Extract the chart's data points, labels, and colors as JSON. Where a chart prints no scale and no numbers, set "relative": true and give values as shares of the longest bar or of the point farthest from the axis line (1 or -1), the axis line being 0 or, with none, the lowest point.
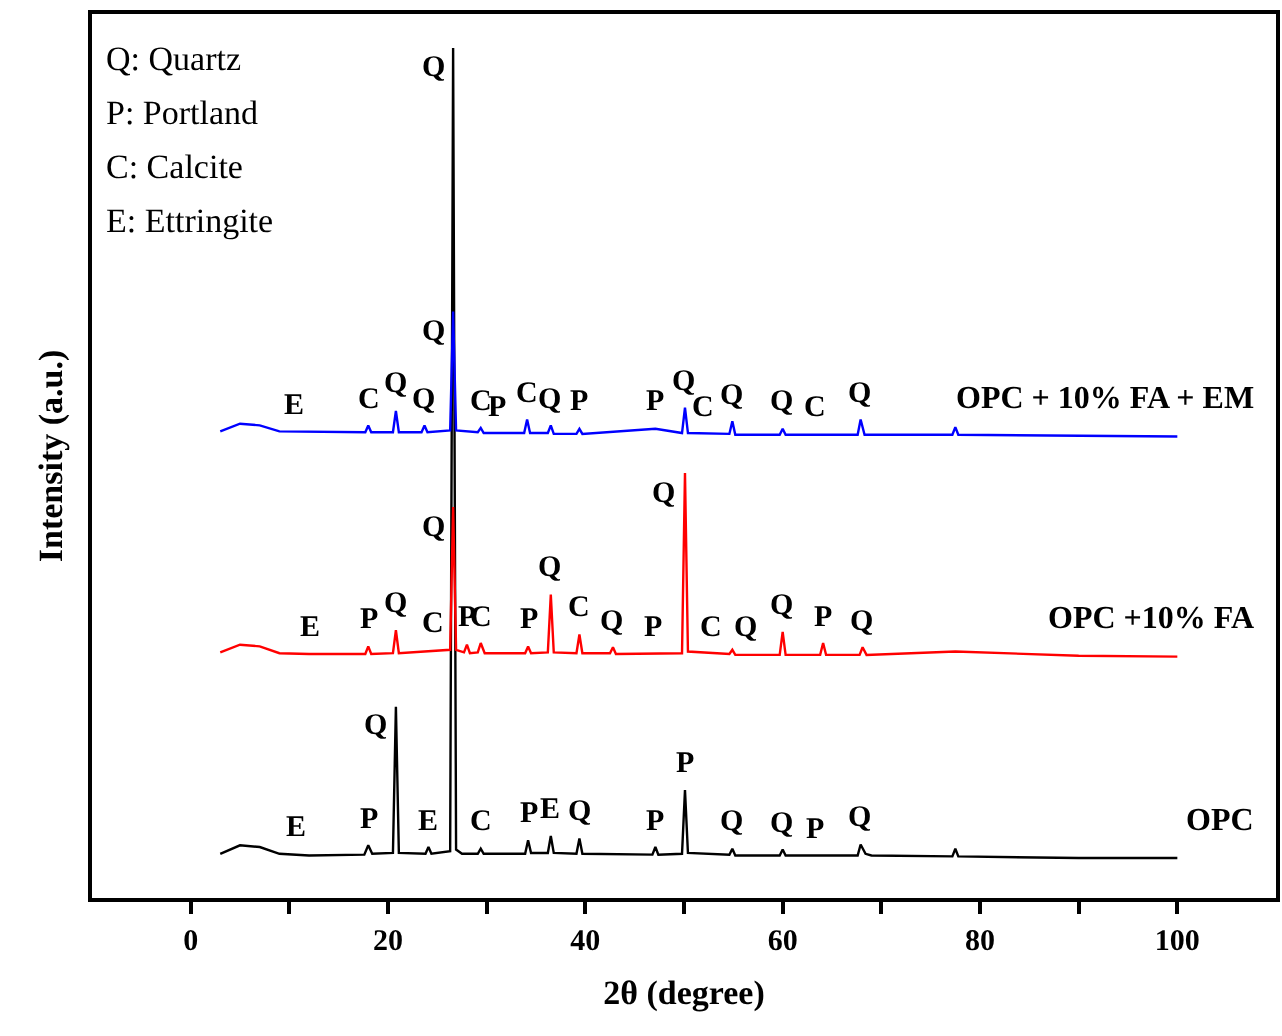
{
  "chart_data": {
    "type": "line",
    "relative": true,
    "xlabel": "2θ (degree)",
    "ylabel": "Intensity (a.u.)",
    "xlim": [
      -10,
      110
    ],
    "ylim": [
      0,
      1.04
    ],
    "xticks": [
      0,
      {
        "value": 10,
        "label": null
      },
      20,
      {
        "value": 30,
        "label": null
      },
      40,
      {
        "value": 50,
        "label": null
      },
      60,
      {
        "value": 70,
        "label": null
      },
      80,
      {
        "value": 90,
        "label": null
      },
      100
    ],
    "tick_labels": "x",
    "grid": false,
    "legend": false,
    "marker": "none",
    "line_style": "solid",
    "series": [
      {
        "name": "OPC + 10% FA + EM",
        "color": "#0000ff",
        "x": [
          3,
          5,
          7,
          9,
          17.7,
          18,
          18.3,
          20.5,
          20.8,
          21.1,
          23.4,
          23.7,
          24,
          26.3,
          26.6,
          26.9,
          29.1,
          29.4,
          29.7,
          33.8,
          34.1,
          34.4,
          36.2,
          36.5,
          36.8,
          39.1,
          39.4,
          39.7,
          47.1,
          49.8,
          50.1,
          50.4,
          54.6,
          54.9,
          55.2,
          59.7,
          60,
          60.3,
          67.6,
          67.9,
          68.3,
          77.2,
          77.5,
          77.8,
          100
        ],
        "values": [
          0.549,
          0.558,
          0.556,
          0.549,
          0.548,
          0.556,
          0.548,
          0.548,
          0.573,
          0.548,
          0.548,
          0.556,
          0.548,
          0.55,
          0.69,
          0.55,
          0.548,
          0.553,
          0.547,
          0.547,
          0.563,
          0.547,
          0.547,
          0.556,
          0.546,
          0.546,
          0.552,
          0.546,
          0.552,
          0.547,
          0.577,
          0.547,
          0.546,
          0.561,
          0.545,
          0.545,
          0.552,
          0.545,
          0.545,
          0.563,
          0.545,
          0.545,
          0.554,
          0.545,
          0.543
        ]
      },
      {
        "name": "OPC +10% FA",
        "color": "#ff0000",
        "x": [
          3,
          5,
          7,
          9,
          12,
          17.7,
          18,
          18.3,
          20.5,
          20.8,
          21.1,
          26.3,
          26.6,
          26.9,
          27.7,
          28,
          28.3,
          29.1,
          29.4,
          29.8,
          33.9,
          34.2,
          34.5,
          36.2,
          36.5,
          36.8,
          39.1,
          39.4,
          39.7,
          42.5,
          42.8,
          43.1,
          49.8,
          50.1,
          50.4,
          54.6,
          54.9,
          55.2,
          59.7,
          60,
          60.3,
          63.8,
          64.1,
          64.4,
          67.8,
          68.1,
          68.5,
          77.5,
          90,
          100
        ],
        "values": [
          0.289,
          0.298,
          0.296,
          0.288,
          0.287,
          0.287,
          0.296,
          0.287,
          0.288,
          0.315,
          0.288,
          0.292,
          0.46,
          0.292,
          0.289,
          0.298,
          0.288,
          0.289,
          0.3,
          0.288,
          0.288,
          0.296,
          0.288,
          0.289,
          0.357,
          0.289,
          0.288,
          0.31,
          0.288,
          0.288,
          0.295,
          0.287,
          0.288,
          0.5,
          0.29,
          0.287,
          0.292,
          0.286,
          0.286,
          0.313,
          0.286,
          0.286,
          0.3,
          0.286,
          0.286,
          0.295,
          0.286,
          0.29,
          0.285,
          0.284
        ]
      },
      {
        "name": "OPC",
        "color": "#000000",
        "x": [
          3,
          5,
          7,
          9,
          12,
          17.6,
          18,
          18.4,
          20.5,
          20.8,
          21.1,
          23.8,
          24.1,
          24.4,
          26.3,
          26.6,
          26.9,
          27.5,
          29.1,
          29.4,
          29.7,
          33.9,
          34.2,
          34.5,
          36.2,
          36.5,
          36.8,
          39.1,
          39.4,
          39.7,
          46.8,
          47.1,
          47.4,
          49.8,
          50.1,
          50.4,
          54.6,
          54.9,
          55.2,
          59.7,
          60,
          60.3,
          67.6,
          67.9,
          68.4,
          69,
          77.2,
          77.5,
          77.8,
          90,
          100
        ],
        "values": [
          0.052,
          0.062,
          0.06,
          0.052,
          0.05,
          0.051,
          0.062,
          0.052,
          0.053,
          0.225,
          0.053,
          0.052,
          0.06,
          0.052,
          0.055,
          1.0,
          0.057,
          0.052,
          0.052,
          0.058,
          0.052,
          0.052,
          0.068,
          0.053,
          0.053,
          0.073,
          0.053,
          0.052,
          0.07,
          0.052,
          0.051,
          0.06,
          0.051,
          0.052,
          0.127,
          0.053,
          0.051,
          0.058,
          0.05,
          0.05,
          0.057,
          0.05,
          0.05,
          0.063,
          0.052,
          0.05,
          0.049,
          0.058,
          0.049,
          0.047,
          0.047
        ]
      }
    ],
    "annotations": [
      "Q: Quartz",
      "P: Portland",
      "C: Calcite",
      "E: Ettringite",
      {
        "text": "E",
        "x": 10.4,
        "y": 0.549
      },
      {
        "text": "C",
        "x": 18,
        "y": 0.556
      },
      {
        "text": "Q",
        "x": 20.8,
        "y": 0.573
      },
      {
        "text": "Q",
        "x": 23.7,
        "y": 0.556
      },
      {
        "text": "Q",
        "x": 26.6,
        "y": 0.69
      },
      {
        "text": "C",
        "x": 29.4,
        "y": 0.553
      },
      {
        "text": "P",
        "x": 31,
        "y": 0.547
      },
      {
        "text": "C",
        "x": 34.1,
        "y": 0.563
      },
      {
        "text": "Q",
        "x": 36.5,
        "y": 0.556
      },
      {
        "text": "P",
        "x": 39.4,
        "y": 0.552
      },
      {
        "text": "P",
        "x": 47.1,
        "y": 0.552
      },
      {
        "text": "Q",
        "x": 50.1,
        "y": 0.577
      },
      {
        "text": "C",
        "x": 52,
        "y": 0.547
      },
      {
        "text": "Q",
        "x": 54.9,
        "y": 0.561
      },
      {
        "text": "Q",
        "x": 60,
        "y": 0.552
      },
      {
        "text": "C",
        "x": 63.3,
        "y": 0.545
      },
      {
        "text": "Q",
        "x": 67.9,
        "y": 0.563
      },
      {
        "text": "Q",
        "x": 26.6,
        "y": 0.46
      },
      {
        "text": "E",
        "x": 12,
        "y": 0.287
      },
      {
        "text": "P",
        "x": 18,
        "y": 0.296
      },
      {
        "text": "Q",
        "x": 20.8,
        "y": 0.315
      },
      {
        "text": "C",
        "x": 24.5,
        "y": 0.291
      },
      {
        "text": "P",
        "x": 28,
        "y": 0.298
      },
      {
        "text": "C",
        "x": 29.4,
        "y": 0.3
      },
      {
        "text": "P",
        "x": 34.2,
        "y": 0.296
      },
      {
        "text": "Q",
        "x": 36.5,
        "y": 0.357
      },
      {
        "text": "C",
        "x": 39.4,
        "y": 0.31
      },
      {
        "text": "Q",
        "x": 42.8,
        "y": 0.295
      },
      {
        "text": "P",
        "x": 46.8,
        "y": 0.288
      },
      {
        "text": "Q",
        "x": 50.1,
        "y": 0.5
      },
      {
        "text": "C",
        "x": 52.7,
        "y": 0.288
      },
      {
        "text": "Q",
        "x": 56.3,
        "y": 0.286
      },
      {
        "text": "Q",
        "x": 60,
        "y": 0.313
      },
      {
        "text": "P",
        "x": 64.1,
        "y": 0.3
      },
      {
        "text": "Q",
        "x": 68.1,
        "y": 0.295
      },
      {
        "text": "Q",
        "x": 26.6,
        "y": 1.0
      },
      {
        "text": "E",
        "x": 10.6,
        "y": 0.051
      },
      {
        "text": "P",
        "x": 18,
        "y": 0.062
      },
      {
        "text": "Q",
        "x": 20.8,
        "y": 0.225
      },
      {
        "text": "E",
        "x": 24.1,
        "y": 0.06
      },
      {
        "text": "C",
        "x": 29.4,
        "y": 0.058
      },
      {
        "text": "P",
        "x": 34.2,
        "y": 0.068
      },
      {
        "text": "E",
        "x": 36.5,
        "y": 0.073
      },
      {
        "text": "Q",
        "x": 39.4,
        "y": 0.07
      },
      {
        "text": "P",
        "x": 47.1,
        "y": 0.06
      },
      {
        "text": "P",
        "x": 50.1,
        "y": 0.127
      },
      {
        "text": "Q",
        "x": 54.9,
        "y": 0.058
      },
      {
        "text": "Q",
        "x": 60,
        "y": 0.057
      },
      {
        "text": "P",
        "x": 63.3,
        "y": 0.05
      },
      {
        "text": "Q",
        "x": 67.9,
        "y": 0.063
      }
    ]
  }
}
